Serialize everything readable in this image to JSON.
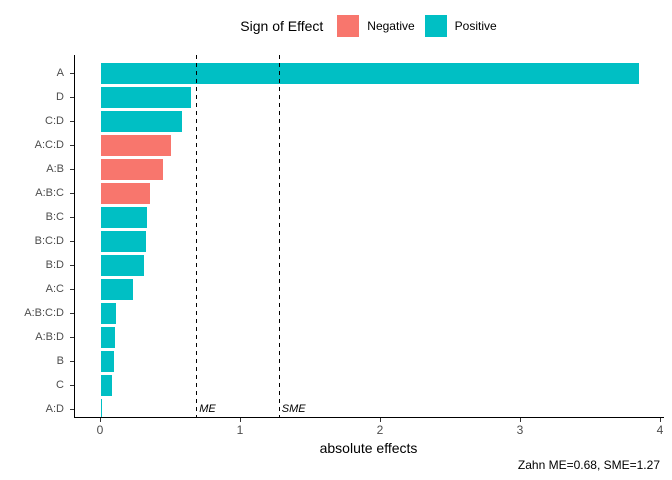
{
  "legend": {
    "title": "Sign of Effect",
    "entries": [
      {
        "label": "Negative",
        "color": "#F8766D"
      },
      {
        "label": "Positive",
        "color": "#00BFC4"
      }
    ]
  },
  "chart_data": {
    "type": "bar",
    "orientation": "horizontal",
    "title": "",
    "xlabel": "absolute effects",
    "ylabel": "",
    "xlim": [
      0,
      4
    ],
    "x_ticks": [
      0,
      1,
      2,
      3,
      4
    ],
    "grid": false,
    "legend_position": "top",
    "categories": [
      "A",
      "D",
      "C:D",
      "A:C:D",
      "A:B",
      "A:B:C",
      "B:C",
      "B:C:D",
      "B:D",
      "A:C",
      "A:B:C:D",
      "A:B:D",
      "B",
      "C",
      "A:D"
    ],
    "series": [
      {
        "name": "absolute effect",
        "values": [
          3.84,
          0.64,
          0.58,
          0.5,
          0.44,
          0.35,
          0.33,
          0.32,
          0.31,
          0.23,
          0.11,
          0.1,
          0.09,
          0.08,
          0.01
        ],
        "signs": [
          "Positive",
          "Positive",
          "Positive",
          "Negative",
          "Negative",
          "Negative",
          "Positive",
          "Positive",
          "Positive",
          "Positive",
          "Positive",
          "Positive",
          "Positive",
          "Positive",
          "Positive"
        ]
      }
    ],
    "reference_lines": [
      {
        "label": "ME",
        "x": 0.68
      },
      {
        "label": "SME",
        "x": 1.27
      }
    ],
    "caption": "Zahn ME=0.68, SME=1.27"
  },
  "colors": {
    "negative": "#F8766D",
    "positive": "#00BFC4",
    "axis_line": "#000000",
    "axis_text": "#4d4d4d"
  }
}
